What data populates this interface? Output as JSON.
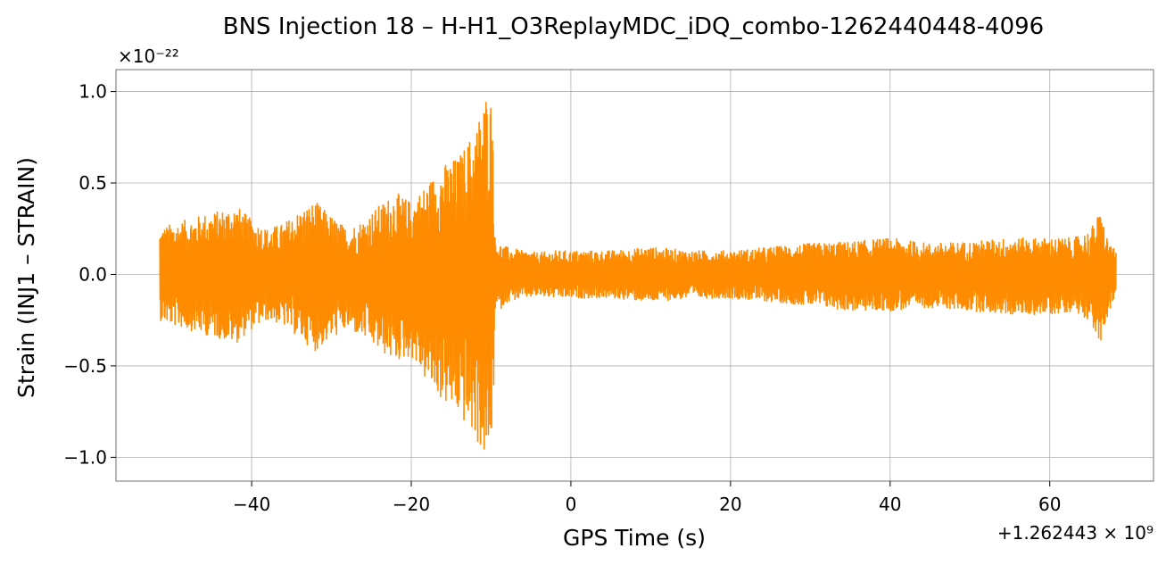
{
  "chart_data": {
    "type": "line",
    "title": "BNS Injection 18 – H-H1_O3ReplayMDC_iDQ_combo-1262440448-4096",
    "xlabel": "GPS Time (s)",
    "ylabel": "Strain (INJ1 – STRAIN)",
    "x_offset_label": "+1.262443 × 10⁹",
    "y_scale_label": "×10⁻²²",
    "xlim": [
      -57.0,
      73.0
    ],
    "ylim": [
      -1.13,
      1.12
    ],
    "x_ticks": [
      -40,
      -20,
      0,
      20,
      40,
      60
    ],
    "x_tick_labels": [
      "−40",
      "−20",
      "0",
      "20",
      "40",
      "60"
    ],
    "y_ticks": [
      -1.0,
      -0.5,
      0.0,
      0.5,
      1.0
    ],
    "y_tick_labels": [
      "−1.0",
      "−0.5",
      "0.0",
      "0.5",
      "1.0"
    ],
    "grid": true,
    "series": [
      {
        "color": "#ff8c00",
        "envelope": {
          "x": [
            -51.5,
            -50.0,
            -48.0,
            -46.0,
            -44.0,
            -42.0,
            -40.0,
            -38.0,
            -36.0,
            -34.0,
            -32.0,
            -30.0,
            -28.0,
            -26.0,
            -24.0,
            -22.0,
            -20.0,
            -18.0,
            -16.0,
            -14.0,
            -12.0,
            -10.5,
            -9.8,
            -9.5,
            -9.0,
            -8.0,
            -6.0,
            -4.0,
            -2.0,
            0.0,
            5.0,
            10.0,
            15.0,
            20.0,
            25.0,
            30.0,
            35.0,
            40.0,
            45.0,
            50.0,
            55.0,
            60.0,
            63.0,
            65.0,
            66.0,
            66.5,
            67.0,
            68.3
          ],
          "upper": [
            0.25,
            0.28,
            0.3,
            0.33,
            0.35,
            0.38,
            0.3,
            0.25,
            0.28,
            0.35,
            0.4,
            0.32,
            0.25,
            0.3,
            0.38,
            0.45,
            0.4,
            0.5,
            0.6,
            0.65,
            0.8,
            1.02,
            0.95,
            0.2,
            0.17,
            0.15,
            0.13,
            0.12,
            0.13,
            0.13,
            0.13,
            0.15,
            0.13,
            0.13,
            0.15,
            0.17,
            0.18,
            0.2,
            0.17,
            0.18,
            0.2,
            0.2,
            0.2,
            0.24,
            0.32,
            0.35,
            0.22,
            0.12
          ],
          "lower": [
            -0.25,
            -0.28,
            -0.3,
            -0.33,
            -0.35,
            -0.38,
            -0.3,
            -0.25,
            -0.28,
            -0.35,
            -0.42,
            -0.35,
            -0.3,
            -0.35,
            -0.42,
            -0.48,
            -0.45,
            -0.6,
            -0.7,
            -0.78,
            -0.9,
            -1.04,
            -0.95,
            -0.2,
            -0.2,
            -0.15,
            -0.13,
            -0.12,
            -0.13,
            -0.13,
            -0.13,
            -0.15,
            -0.13,
            -0.13,
            -0.15,
            -0.17,
            -0.2,
            -0.2,
            -0.18,
            -0.2,
            -0.22,
            -0.22,
            -0.2,
            -0.25,
            -0.35,
            -0.45,
            -0.25,
            -0.12
          ]
        }
      }
    ]
  }
}
